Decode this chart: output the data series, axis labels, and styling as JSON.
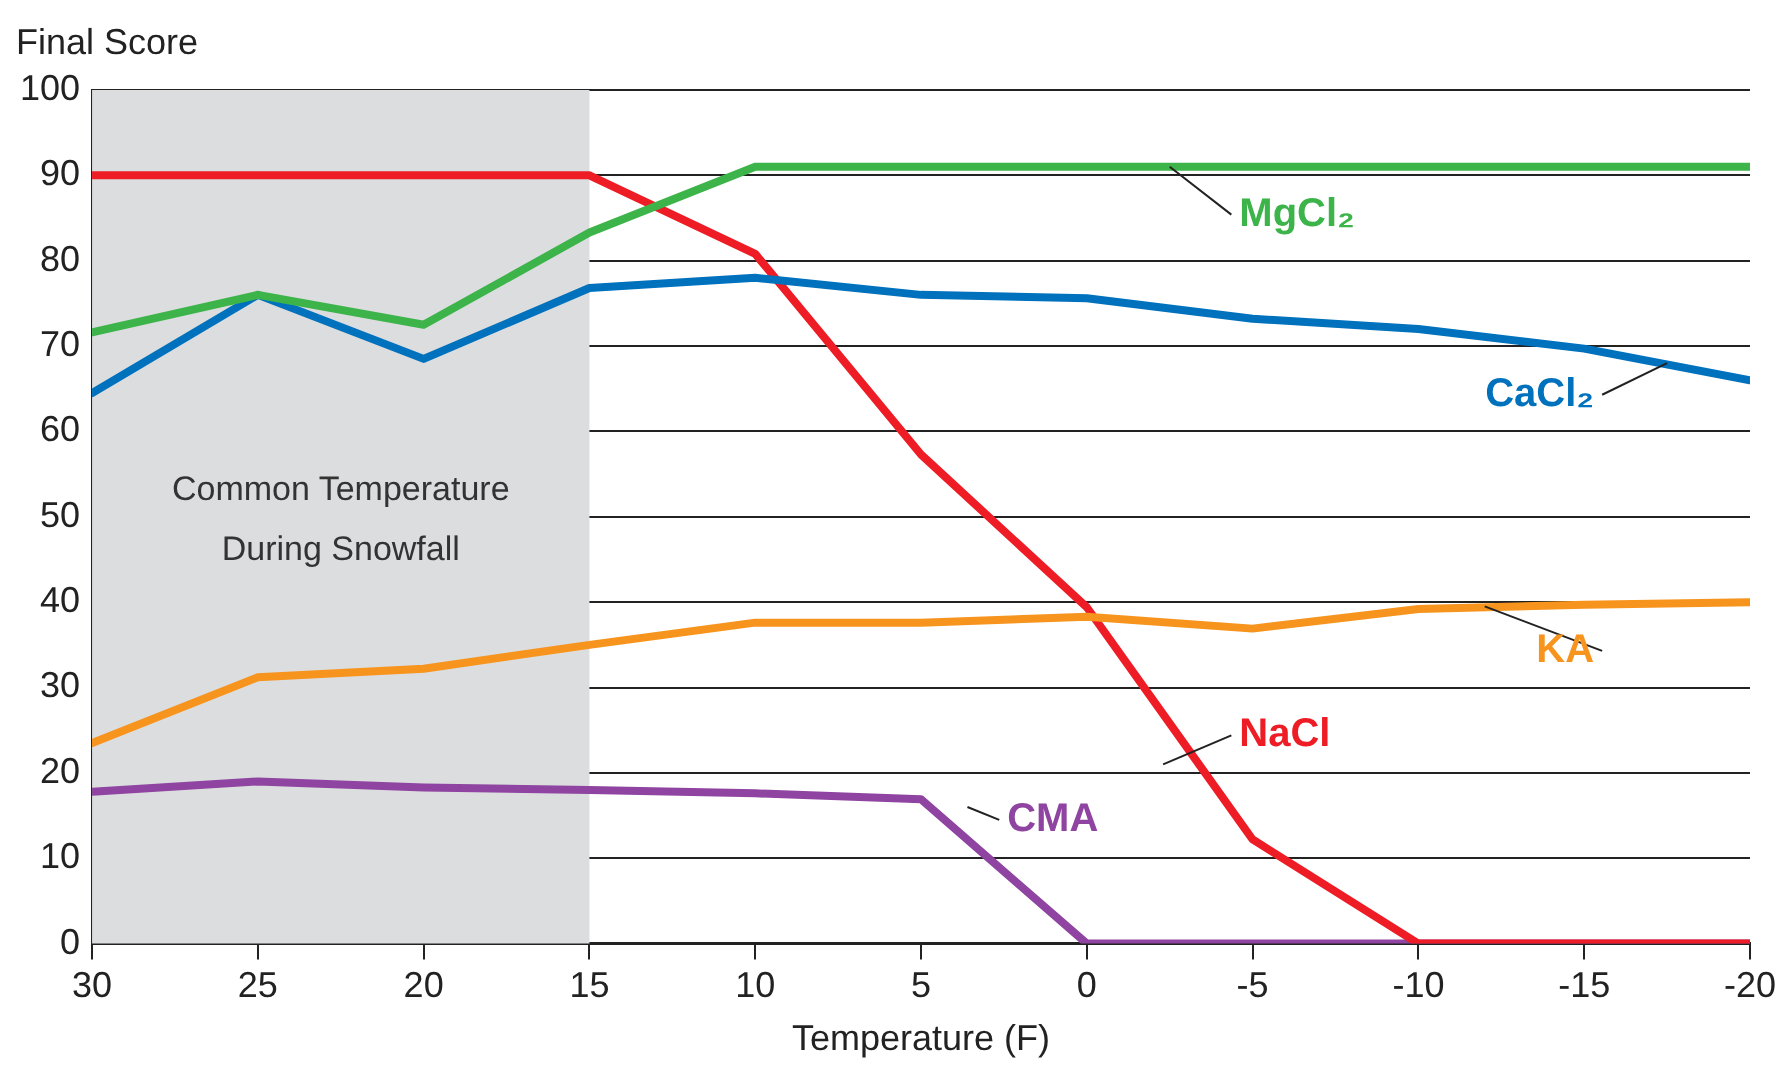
{
  "chart_data": {
    "type": "line",
    "xlabel": "Temperature (F)",
    "ylabel": "Final Score",
    "x": [
      30,
      25,
      20,
      15,
      10,
      5,
      0,
      -5,
      -10,
      -15,
      -20
    ],
    "xlim": [
      30,
      -20
    ],
    "xticks": [
      30,
      25,
      20,
      15,
      10,
      5,
      0,
      -5,
      -10,
      -15,
      -20
    ],
    "ylim": [
      0,
      100
    ],
    "yticks": [
      0,
      10,
      20,
      30,
      40,
      50,
      60,
      70,
      80,
      90,
      100
    ],
    "grid": "y",
    "legend": false,
    "marker": "none",
    "line_style": "solid",
    "bands": [
      {
        "axis": "x",
        "from": 30,
        "to": 15,
        "label": "Common Temperature\nDuring Snowfall",
        "color": "#dcdddf"
      }
    ],
    "series": [
      {
        "name": "MgCl₂",
        "color": "#3cb44a",
        "values": [
          71.6,
          76,
          72.5,
          83.3,
          91,
          91,
          91,
          91,
          91,
          91,
          91
        ]
      },
      {
        "name": "CaCl₂",
        "color": "#0071bc",
        "values": [
          64.5,
          76,
          68.5,
          76.8,
          78,
          76,
          75.6,
          73.2,
          72,
          69.7,
          66
        ]
      },
      {
        "name": "KA",
        "color": "#f7941d",
        "values": [
          23.5,
          31.2,
          32.2,
          35,
          37.6,
          37.6,
          38.3,
          36.9,
          39.2,
          39.7,
          40
        ]
      },
      {
        "name": "NaCl",
        "color": "#ee1c25",
        "values": [
          90,
          90,
          90,
          90,
          80.8,
          57.3,
          39.4,
          12.2,
          0,
          0,
          0
        ]
      },
      {
        "name": "CMA",
        "color": "#8e44a0",
        "values": [
          17.8,
          19,
          18.3,
          18,
          17.6,
          16.9,
          0,
          0,
          0,
          0,
          0
        ]
      }
    ]
  }
}
